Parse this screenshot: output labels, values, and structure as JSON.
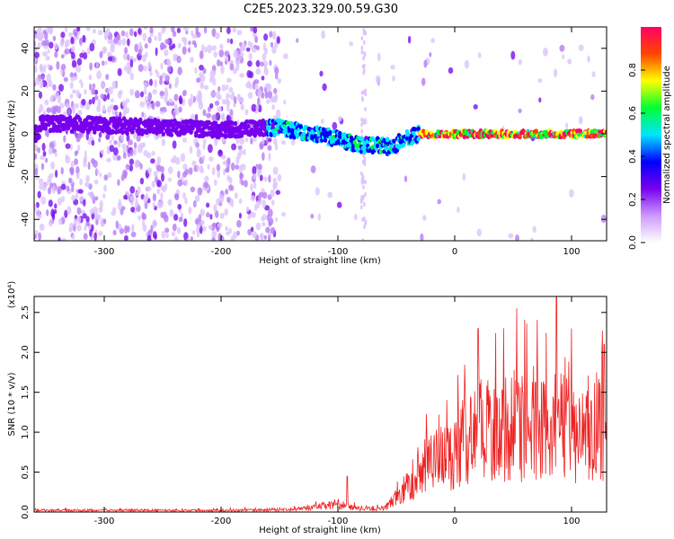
{
  "title": "C2E5.2023.329.00.59.G30",
  "chart_data": [
    {
      "type": "heatmap",
      "xlabel": "Height of straight line (km)",
      "ylabel": "Frequency (Hz)",
      "xlim": [
        -360,
        130
      ],
      "ylim": [
        -50,
        50
      ],
      "x_ticks": [
        -300,
        -200,
        -100,
        0,
        100
      ],
      "y_ticks": [
        -40,
        -20,
        0,
        20,
        40
      ],
      "colorbar": {
        "label": "Normalized spectral amplitude",
        "range": [
          0,
          1
        ],
        "ticks": [
          "0.0",
          "0.2",
          "0.4",
          "0.6",
          "0.8"
        ],
        "colors": [
          "#ffffff",
          "#cc99ff",
          "#7700ee",
          "#0000ff",
          "#00e5ff",
          "#00ff33",
          "#ffff00",
          "#ff4400",
          "#ff0066"
        ]
      },
      "trace_points": [
        {
          "x": -355,
          "y": 5
        },
        {
          "x": -300,
          "y": 4
        },
        {
          "x": -200,
          "y": 2
        },
        {
          "x": -150,
          "y": 3
        },
        {
          "x": -120,
          "y": 0
        },
        {
          "x": -80,
          "y": -5
        },
        {
          "x": -55,
          "y": -6
        },
        {
          "x": -40,
          "y": -2
        },
        {
          "x": -30,
          "y": 0
        },
        {
          "x": 0,
          "y": 0
        },
        {
          "x": 130,
          "y": 0
        }
      ]
    },
    {
      "type": "line",
      "xlabel": "Height of straight line (km)",
      "ylabel": "SNR (10 * v/v)",
      "yscale_label": "(x10⁴)",
      "xlim": [
        -360,
        130
      ],
      "ylim": [
        0,
        2.7
      ],
      "x_ticks": [
        -300,
        -200,
        -100,
        0,
        100
      ],
      "y_ticks": [
        "0.0",
        "0.5",
        "1.0",
        "1.5",
        "2.0",
        "2.5"
      ],
      "color": "#ee2222",
      "envelope": [
        {
          "x": -360,
          "y": 0.03
        },
        {
          "x": -200,
          "y": 0.03
        },
        {
          "x": -140,
          "y": 0.04
        },
        {
          "x": -120,
          "y": 0.08
        },
        {
          "x": -100,
          "y": 0.14
        },
        {
          "x": -80,
          "y": 0.05
        },
        {
          "x": -60,
          "y": 0.06
        },
        {
          "x": -50,
          "y": 0.25
        },
        {
          "x": -40,
          "y": 0.45
        },
        {
          "x": -30,
          "y": 0.75
        },
        {
          "x": -20,
          "y": 0.85
        },
        {
          "x": -10,
          "y": 0.95
        },
        {
          "x": 0,
          "y": 1.0
        },
        {
          "x": 10,
          "y": 1.3
        },
        {
          "x": 20,
          "y": 1.55
        },
        {
          "x": 30,
          "y": 1.45
        },
        {
          "x": 40,
          "y": 1.4
        },
        {
          "x": 50,
          "y": 1.5
        },
        {
          "x": 60,
          "y": 1.45
        },
        {
          "x": 70,
          "y": 1.45
        },
        {
          "x": 80,
          "y": 1.5
        },
        {
          "x": 90,
          "y": 1.45
        },
        {
          "x": 100,
          "y": 1.4
        },
        {
          "x": 110,
          "y": 1.35
        },
        {
          "x": 120,
          "y": 1.4
        },
        {
          "x": 130,
          "y": 1.4
        }
      ],
      "peaks": [
        {
          "x": -92,
          "y": 0.45
        },
        {
          "x": 20,
          "y": 2.3
        },
        {
          "x": 53,
          "y": 2.55
        },
        {
          "x": 87,
          "y": 2.7
        },
        {
          "x": 100,
          "y": 2.3
        },
        {
          "x": 128,
          "y": 2.1
        }
      ]
    }
  ]
}
